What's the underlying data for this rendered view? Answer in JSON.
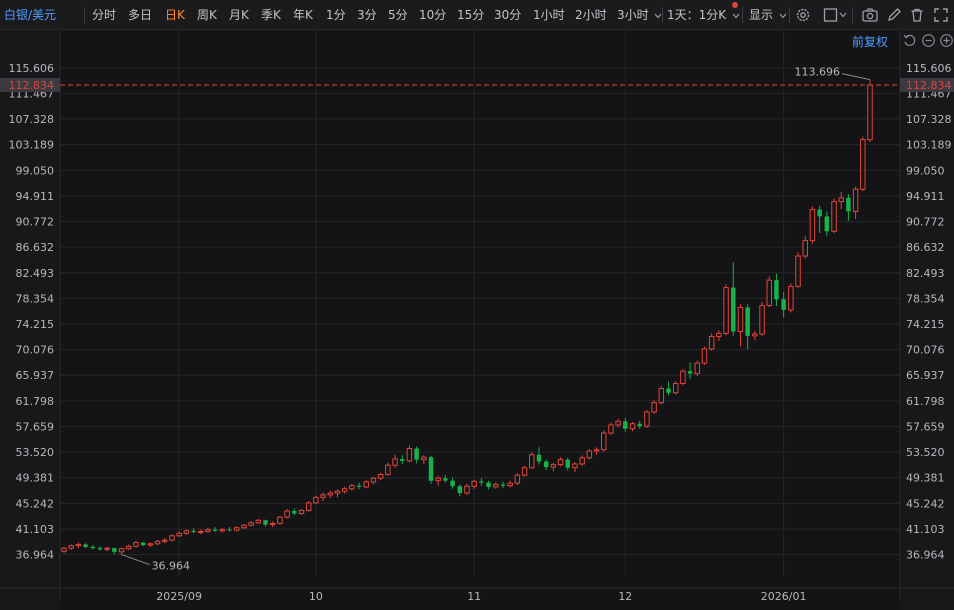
{
  "toolbar": {
    "symbol": "白银/美元",
    "periods": [
      "分时",
      "多日",
      "日K",
      "周K",
      "月K",
      "季K",
      "年K",
      "1分",
      "3分",
      "5分",
      "10分",
      "15分",
      "30分",
      "1小时",
      "2小时",
      "3小时"
    ],
    "active_period": "日K",
    "period_select": "1天：1分K",
    "display_label": "显示",
    "icons": [
      "settings-icon",
      "square-icon",
      "camera-icon",
      "pen-icon",
      "trash-icon",
      "fullscreen-icon"
    ]
  },
  "chart_header": {
    "adjust_label": "前复权",
    "icons": [
      "undo-icon",
      "zoom-out-icon",
      "zoom-in-icon"
    ]
  },
  "colors": {
    "up": "#e0453a",
    "down": "#16b24a",
    "background": "#141416",
    "grid": "#26262a",
    "price_line": "#e0453a"
  },
  "chart_data": {
    "type": "candlestick",
    "x_labels": [
      "2025/09",
      "10",
      "11",
      "12",
      "2026/01"
    ],
    "y_ticks": [
      115.606,
      111.467,
      107.328,
      103.189,
      99.05,
      94.911,
      90.772,
      86.632,
      82.493,
      78.354,
      74.215,
      70.076,
      65.937,
      61.798,
      57.659,
      53.52,
      49.381,
      45.242,
      41.103,
      36.964
    ],
    "ylim": [
      33.5,
      118
    ],
    "current_price": 112.834,
    "current_price_label": "112.834",
    "max_label": "113.696",
    "min_label": "36.964",
    "max_value": 113.696,
    "min_value": 36.964,
    "candles": [
      {
        "o": 37.5,
        "h": 38.2,
        "l": 37.2,
        "c": 38.0
      },
      {
        "o": 38.0,
        "h": 38.6,
        "l": 37.7,
        "c": 38.4
      },
      {
        "o": 38.4,
        "h": 38.9,
        "l": 38.0,
        "c": 38.6
      },
      {
        "o": 38.6,
        "h": 38.8,
        "l": 38.0,
        "c": 38.2
      },
      {
        "o": 38.2,
        "h": 38.5,
        "l": 37.8,
        "c": 38.0
      },
      {
        "o": 38.0,
        "h": 38.3,
        "l": 37.6,
        "c": 37.8
      },
      {
        "o": 37.8,
        "h": 38.2,
        "l": 37.5,
        "c": 38.0
      },
      {
        "o": 38.0,
        "h": 38.1,
        "l": 37.0,
        "c": 37.4
      },
      {
        "o": 37.4,
        "h": 38.0,
        "l": 36.964,
        "c": 37.9
      },
      {
        "o": 37.9,
        "h": 38.6,
        "l": 37.7,
        "c": 38.3
      },
      {
        "o": 38.3,
        "h": 39.2,
        "l": 38.1,
        "c": 38.9
      },
      {
        "o": 38.9,
        "h": 39.0,
        "l": 38.3,
        "c": 38.5
      },
      {
        "o": 38.5,
        "h": 38.9,
        "l": 38.2,
        "c": 38.7
      },
      {
        "o": 38.7,
        "h": 39.3,
        "l": 38.5,
        "c": 39.1
      },
      {
        "o": 39.1,
        "h": 39.6,
        "l": 38.8,
        "c": 39.3
      },
      {
        "o": 39.3,
        "h": 40.2,
        "l": 39.1,
        "c": 40.0
      },
      {
        "o": 40.0,
        "h": 40.7,
        "l": 39.8,
        "c": 40.4
      },
      {
        "o": 40.4,
        "h": 41.0,
        "l": 40.2,
        "c": 40.8
      },
      {
        "o": 40.8,
        "h": 41.2,
        "l": 40.4,
        "c": 40.6
      },
      {
        "o": 40.6,
        "h": 41.0,
        "l": 40.3,
        "c": 40.7
      },
      {
        "o": 40.7,
        "h": 41.3,
        "l": 40.5,
        "c": 41.0
      },
      {
        "o": 41.0,
        "h": 41.4,
        "l": 40.6,
        "c": 40.8
      },
      {
        "o": 40.8,
        "h": 41.2,
        "l": 40.5,
        "c": 41.0
      },
      {
        "o": 41.0,
        "h": 41.4,
        "l": 40.7,
        "c": 40.9
      },
      {
        "o": 40.9,
        "h": 41.5,
        "l": 40.7,
        "c": 41.3
      },
      {
        "o": 41.3,
        "h": 41.9,
        "l": 41.1,
        "c": 41.7
      },
      {
        "o": 41.7,
        "h": 42.4,
        "l": 41.5,
        "c": 42.1
      },
      {
        "o": 42.1,
        "h": 42.7,
        "l": 41.9,
        "c": 42.5
      },
      {
        "o": 42.5,
        "h": 42.6,
        "l": 41.5,
        "c": 41.8
      },
      {
        "o": 41.8,
        "h": 42.3,
        "l": 41.4,
        "c": 42.0
      },
      {
        "o": 42.0,
        "h": 43.2,
        "l": 41.8,
        "c": 43.0
      },
      {
        "o": 43.0,
        "h": 44.3,
        "l": 42.8,
        "c": 44.0
      },
      {
        "o": 44.0,
        "h": 44.4,
        "l": 43.3,
        "c": 43.6
      },
      {
        "o": 43.6,
        "h": 44.3,
        "l": 43.4,
        "c": 44.1
      },
      {
        "o": 44.1,
        "h": 45.6,
        "l": 43.9,
        "c": 45.3
      },
      {
        "o": 45.3,
        "h": 46.5,
        "l": 45.1,
        "c": 46.2
      },
      {
        "o": 46.2,
        "h": 47.0,
        "l": 45.6,
        "c": 46.6
      },
      {
        "o": 46.6,
        "h": 47.3,
        "l": 46.1,
        "c": 46.9
      },
      {
        "o": 46.9,
        "h": 47.5,
        "l": 46.2,
        "c": 47.2
      },
      {
        "o": 47.2,
        "h": 47.9,
        "l": 46.8,
        "c": 47.6
      },
      {
        "o": 47.6,
        "h": 48.4,
        "l": 47.3,
        "c": 48.1
      },
      {
        "o": 48.1,
        "h": 48.6,
        "l": 47.5,
        "c": 47.9
      },
      {
        "o": 47.9,
        "h": 49.0,
        "l": 47.7,
        "c": 48.7
      },
      {
        "o": 48.7,
        "h": 49.5,
        "l": 48.3,
        "c": 49.3
      },
      {
        "o": 49.3,
        "h": 50.2,
        "l": 49.0,
        "c": 49.9
      },
      {
        "o": 49.9,
        "h": 51.8,
        "l": 49.7,
        "c": 51.4
      },
      {
        "o": 51.4,
        "h": 53.1,
        "l": 51.0,
        "c": 52.4
      },
      {
        "o": 52.4,
        "h": 53.0,
        "l": 51.6,
        "c": 52.1
      },
      {
        "o": 52.1,
        "h": 54.6,
        "l": 51.9,
        "c": 54.1
      },
      {
        "o": 54.1,
        "h": 54.4,
        "l": 51.7,
        "c": 52.3
      },
      {
        "o": 52.3,
        "h": 53.0,
        "l": 51.6,
        "c": 52.7
      },
      {
        "o": 52.7,
        "h": 52.9,
        "l": 48.4,
        "c": 48.9
      },
      {
        "o": 48.9,
        "h": 49.7,
        "l": 48.1,
        "c": 49.3
      },
      {
        "o": 49.3,
        "h": 49.8,
        "l": 48.6,
        "c": 48.9
      },
      {
        "o": 48.9,
        "h": 49.4,
        "l": 47.6,
        "c": 48.0
      },
      {
        "o": 48.0,
        "h": 48.3,
        "l": 46.4,
        "c": 46.9
      },
      {
        "o": 46.9,
        "h": 48.4,
        "l": 46.6,
        "c": 48.0
      },
      {
        "o": 48.0,
        "h": 49.1,
        "l": 47.6,
        "c": 48.8
      },
      {
        "o": 48.8,
        "h": 49.3,
        "l": 48.1,
        "c": 48.6
      },
      {
        "o": 48.6,
        "h": 48.9,
        "l": 47.5,
        "c": 47.9
      },
      {
        "o": 47.9,
        "h": 48.6,
        "l": 47.6,
        "c": 48.3
      },
      {
        "o": 48.3,
        "h": 48.7,
        "l": 47.7,
        "c": 48.1
      },
      {
        "o": 48.1,
        "h": 48.9,
        "l": 47.8,
        "c": 48.5
      },
      {
        "o": 48.5,
        "h": 50.1,
        "l": 48.2,
        "c": 49.8
      },
      {
        "o": 49.8,
        "h": 51.3,
        "l": 49.6,
        "c": 51.0
      },
      {
        "o": 51.0,
        "h": 53.5,
        "l": 50.8,
        "c": 53.1
      },
      {
        "o": 53.1,
        "h": 54.3,
        "l": 51.5,
        "c": 52.0
      },
      {
        "o": 52.0,
        "h": 52.3,
        "l": 50.6,
        "c": 51.1
      },
      {
        "o": 51.1,
        "h": 51.8,
        "l": 50.4,
        "c": 51.5
      },
      {
        "o": 51.5,
        "h": 52.7,
        "l": 51.2,
        "c": 52.3
      },
      {
        "o": 52.3,
        "h": 52.6,
        "l": 50.6,
        "c": 51.0
      },
      {
        "o": 51.0,
        "h": 51.9,
        "l": 50.3,
        "c": 51.6
      },
      {
        "o": 51.6,
        "h": 53.0,
        "l": 51.3,
        "c": 52.6
      },
      {
        "o": 52.6,
        "h": 54.0,
        "l": 52.3,
        "c": 53.7
      },
      {
        "o": 53.7,
        "h": 54.3,
        "l": 53.1,
        "c": 53.9
      },
      {
        "o": 53.9,
        "h": 57.0,
        "l": 53.6,
        "c": 56.6
      },
      {
        "o": 56.6,
        "h": 58.3,
        "l": 56.3,
        "c": 57.9
      },
      {
        "o": 57.9,
        "h": 58.9,
        "l": 57.5,
        "c": 58.5
      },
      {
        "o": 58.5,
        "h": 59.0,
        "l": 56.8,
        "c": 57.3
      },
      {
        "o": 57.3,
        "h": 58.4,
        "l": 56.9,
        "c": 58.1
      },
      {
        "o": 58.1,
        "h": 58.6,
        "l": 57.3,
        "c": 57.7
      },
      {
        "o": 57.7,
        "h": 60.3,
        "l": 57.4,
        "c": 60.0
      },
      {
        "o": 60.0,
        "h": 61.9,
        "l": 59.7,
        "c": 61.5
      },
      {
        "o": 61.5,
        "h": 64.2,
        "l": 61.2,
        "c": 63.8
      },
      {
        "o": 63.8,
        "h": 64.9,
        "l": 62.7,
        "c": 63.1
      },
      {
        "o": 63.1,
        "h": 65.0,
        "l": 62.8,
        "c": 64.6
      },
      {
        "o": 64.6,
        "h": 66.9,
        "l": 64.3,
        "c": 66.6
      },
      {
        "o": 66.6,
        "h": 68.0,
        "l": 65.3,
        "c": 66.2
      },
      {
        "o": 66.2,
        "h": 68.3,
        "l": 65.8,
        "c": 67.9
      },
      {
        "o": 67.9,
        "h": 70.6,
        "l": 67.6,
        "c": 70.2
      },
      {
        "o": 70.2,
        "h": 72.7,
        "l": 69.9,
        "c": 72.2
      },
      {
        "o": 72.2,
        "h": 73.2,
        "l": 71.5,
        "c": 72.7
      },
      {
        "o": 72.7,
        "h": 80.6,
        "l": 72.4,
        "c": 80.1
      },
      {
        "o": 80.1,
        "h": 84.2,
        "l": 72.3,
        "c": 73.0
      },
      {
        "o": 73.0,
        "h": 77.4,
        "l": 70.6,
        "c": 76.9
      },
      {
        "o": 76.9,
        "h": 77.4,
        "l": 70.1,
        "c": 72.3
      },
      {
        "o": 72.3,
        "h": 73.1,
        "l": 71.6,
        "c": 72.6
      },
      {
        "o": 72.6,
        "h": 77.8,
        "l": 72.3,
        "c": 77.2
      },
      {
        "o": 77.2,
        "h": 81.9,
        "l": 76.9,
        "c": 81.3
      },
      {
        "o": 81.3,
        "h": 82.3,
        "l": 77.1,
        "c": 78.2
      },
      {
        "o": 78.2,
        "h": 79.4,
        "l": 75.3,
        "c": 76.5
      },
      {
        "o": 76.5,
        "h": 80.8,
        "l": 76.1,
        "c": 80.3
      },
      {
        "o": 80.3,
        "h": 85.8,
        "l": 80.0,
        "c": 85.2
      },
      {
        "o": 85.2,
        "h": 88.4,
        "l": 84.8,
        "c": 87.7
      },
      {
        "o": 87.7,
        "h": 93.2,
        "l": 87.2,
        "c": 92.7
      },
      {
        "o": 92.7,
        "h": 93.3,
        "l": 88.9,
        "c": 91.6
      },
      {
        "o": 91.6,
        "h": 92.4,
        "l": 88.4,
        "c": 89.2
      },
      {
        "o": 89.2,
        "h": 94.5,
        "l": 88.9,
        "c": 94.0
      },
      {
        "o": 94.0,
        "h": 95.6,
        "l": 92.8,
        "c": 94.6
      },
      {
        "o": 94.6,
        "h": 95.2,
        "l": 90.9,
        "c": 92.4
      },
      {
        "o": 92.4,
        "h": 96.4,
        "l": 91.2,
        "c": 96.0
      },
      {
        "o": 96.0,
        "h": 104.5,
        "l": 95.7,
        "c": 104.0
      },
      {
        "o": 104.0,
        "h": 113.696,
        "l": 103.6,
        "c": 112.834
      }
    ]
  }
}
